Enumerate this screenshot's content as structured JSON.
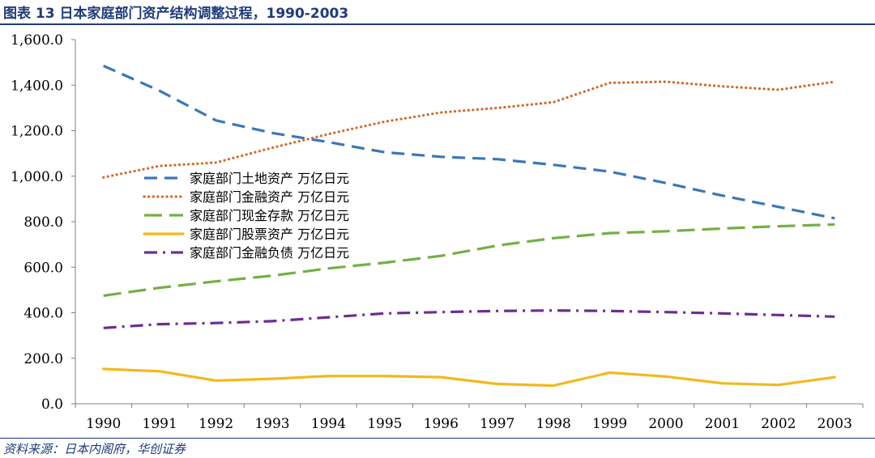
{
  "header": {
    "title": "图表 13 日本家庭部门资产结构调整过程，1990-2003"
  },
  "footer": {
    "source": "资料来源：日本内阁府，华创证券"
  },
  "chart_data": {
    "type": "line",
    "title": "图表 13 日本家庭部门资产结构调整过程，1990-2003",
    "xlabel": "",
    "ylabel": "",
    "ylim": [
      0,
      1600
    ],
    "yticks": [
      "0.0",
      "200.0",
      "400.0",
      "600.0",
      "800.0",
      "1,000.0",
      "1,200.0",
      "1,400.0",
      "1,600.0"
    ],
    "grid": false,
    "legend_position": "center-left",
    "categories": [
      "1990",
      "1991",
      "1992",
      "1993",
      "1994",
      "1995",
      "1996",
      "1997",
      "1998",
      "1999",
      "2000",
      "2001",
      "2002",
      "2003"
    ],
    "series": [
      {
        "name": "家庭部门土地资产 万亿日元",
        "color": "#3a77b8",
        "style": "dashed",
        "values": [
          1485,
          1375,
          1245,
          1190,
          1150,
          1105,
          1085,
          1075,
          1050,
          1020,
          970,
          915,
          865,
          815
        ]
      },
      {
        "name": "家庭部门金融资产 万亿日元",
        "color": "#d2692a",
        "style": "dotted",
        "values": [
          995,
          1045,
          1060,
          1125,
          1185,
          1240,
          1280,
          1300,
          1325,
          1410,
          1415,
          1395,
          1380,
          1415
        ]
      },
      {
        "name": "家庭部门现金存款 万亿日元",
        "color": "#73b043",
        "style": "long-dash",
        "values": [
          475,
          510,
          538,
          563,
          595,
          620,
          650,
          695,
          728,
          750,
          758,
          770,
          780,
          788
        ]
      },
      {
        "name": "家庭部门股票资产 万亿日元",
        "color": "#f4b81c",
        "style": "solid",
        "values": [
          153,
          143,
          102,
          110,
          122,
          122,
          117,
          87,
          80,
          137,
          120,
          90,
          83,
          117
        ]
      },
      {
        "name": "家庭部门金融负债 万亿日元",
        "color": "#6c2d91",
        "style": "dash-dot",
        "values": [
          333,
          350,
          355,
          363,
          380,
          397,
          403,
          408,
          410,
          408,
          403,
          397,
          390,
          383
        ]
      }
    ]
  }
}
